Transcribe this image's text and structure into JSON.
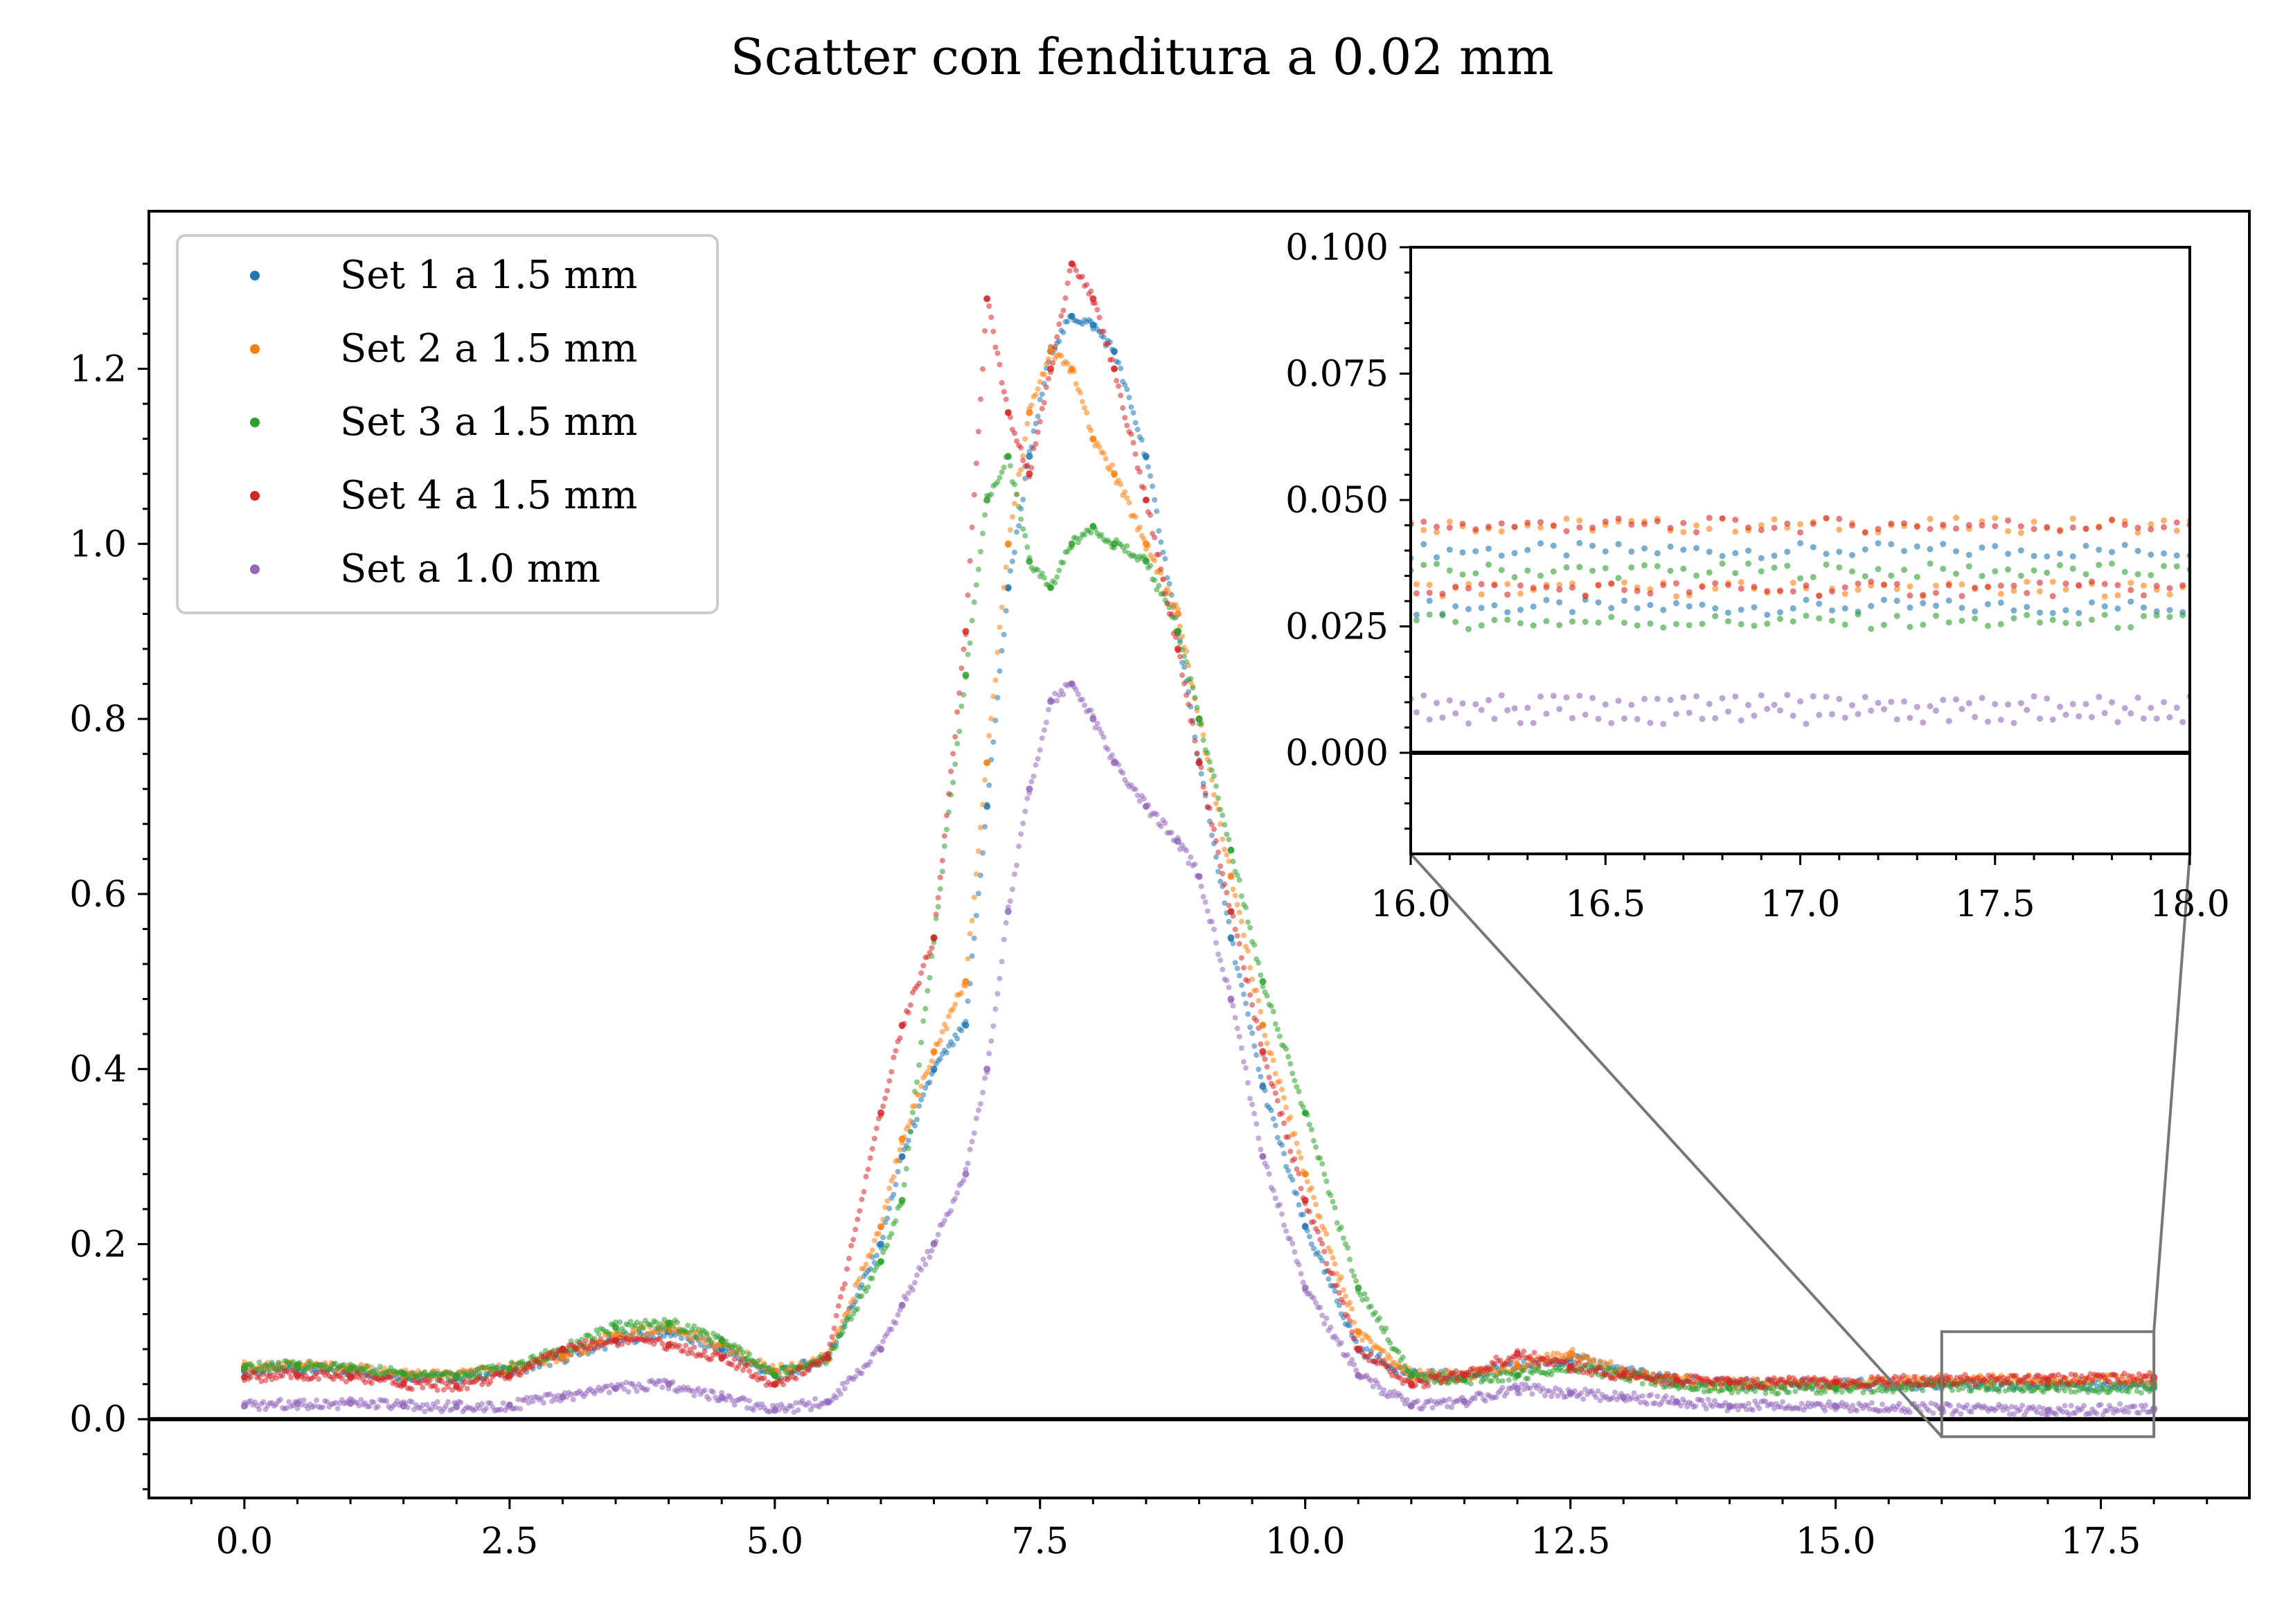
{
  "chart_data": {
    "type": "scatter",
    "title": "Scatter con fenditura a 0.02 mm",
    "xlabel": "",
    "ylabel": "",
    "xlim": [
      -0.9,
      18.9
    ],
    "ylim": [
      -0.09,
      1.38
    ],
    "x_ticks": [
      "0.0",
      "2.5",
      "5.0",
      "7.5",
      "10.0",
      "12.5",
      "15.0",
      "17.5"
    ],
    "y_ticks": [
      "0.0",
      "0.2",
      "0.4",
      "0.6",
      "0.8",
      "1.0",
      "1.2"
    ],
    "grid": false,
    "legend_position": "top-left",
    "series": [
      {
        "name": "Set 1 a 1.5 mm",
        "color": "#1f77b4",
        "points": [
          [
            0,
            0.055
          ],
          [
            0.5,
            0.058
          ],
          [
            1,
            0.055
          ],
          [
            1.5,
            0.05
          ],
          [
            2,
            0.048
          ],
          [
            2.5,
            0.055
          ],
          [
            3,
            0.07
          ],
          [
            3.5,
            0.09
          ],
          [
            4,
            0.1
          ],
          [
            4.5,
            0.08
          ],
          [
            5,
            0.05
          ],
          [
            5.5,
            0.07
          ],
          [
            6,
            0.2
          ],
          [
            6.2,
            0.3
          ],
          [
            6.5,
            0.4
          ],
          [
            6.8,
            0.45
          ],
          [
            7,
            0.7
          ],
          [
            7.2,
            0.95
          ],
          [
            7.4,
            1.1
          ],
          [
            7.6,
            1.22
          ],
          [
            7.8,
            1.26
          ],
          [
            8,
            1.25
          ],
          [
            8.2,
            1.22
          ],
          [
            8.5,
            1.1
          ],
          [
            8.8,
            0.9
          ],
          [
            9,
            0.75
          ],
          [
            9.3,
            0.55
          ],
          [
            9.6,
            0.38
          ],
          [
            10,
            0.22
          ],
          [
            10.5,
            0.08
          ],
          [
            11,
            0.05
          ],
          [
            11.5,
            0.05
          ],
          [
            12,
            0.06
          ],
          [
            12.5,
            0.07
          ],
          [
            13,
            0.055
          ],
          [
            13.5,
            0.045
          ],
          [
            14,
            0.04
          ],
          [
            15,
            0.04
          ],
          [
            16,
            0.04
          ],
          [
            17,
            0.04
          ],
          [
            18,
            0.04
          ]
        ]
      },
      {
        "name": "Set 2 a 1.5 mm",
        "color": "#ff7f0e",
        "points": [
          [
            0,
            0.06
          ],
          [
            0.5,
            0.062
          ],
          [
            1,
            0.058
          ],
          [
            1.5,
            0.05
          ],
          [
            2,
            0.05
          ],
          [
            2.5,
            0.058
          ],
          [
            3,
            0.072
          ],
          [
            3.5,
            0.095
          ],
          [
            4,
            0.105
          ],
          [
            4.5,
            0.085
          ],
          [
            5,
            0.055
          ],
          [
            5.5,
            0.07
          ],
          [
            6,
            0.22
          ],
          [
            6.2,
            0.32
          ],
          [
            6.5,
            0.42
          ],
          [
            6.8,
            0.5
          ],
          [
            7,
            0.75
          ],
          [
            7.2,
            1.0
          ],
          [
            7.4,
            1.15
          ],
          [
            7.6,
            1.22
          ],
          [
            7.8,
            1.2
          ],
          [
            8,
            1.12
          ],
          [
            8.2,
            1.08
          ],
          [
            8.5,
            1.0
          ],
          [
            8.8,
            0.92
          ],
          [
            9,
            0.8
          ],
          [
            9.3,
            0.62
          ],
          [
            9.6,
            0.45
          ],
          [
            10,
            0.28
          ],
          [
            10.5,
            0.1
          ],
          [
            11,
            0.05
          ],
          [
            11.5,
            0.05
          ],
          [
            12,
            0.06
          ],
          [
            12.5,
            0.075
          ],
          [
            13,
            0.055
          ],
          [
            13.5,
            0.045
          ],
          [
            14,
            0.04
          ],
          [
            15,
            0.04
          ],
          [
            16,
            0.045
          ],
          [
            17,
            0.045
          ],
          [
            18,
            0.045
          ]
        ]
      },
      {
        "name": "Set 3 a 1.5 mm",
        "color": "#2ca02c",
        "points": [
          [
            0,
            0.058
          ],
          [
            0.5,
            0.062
          ],
          [
            1,
            0.058
          ],
          [
            1.5,
            0.052
          ],
          [
            2,
            0.05
          ],
          [
            2.5,
            0.058
          ],
          [
            3,
            0.08
          ],
          [
            3.5,
            0.105
          ],
          [
            4,
            0.11
          ],
          [
            4.5,
            0.09
          ],
          [
            5,
            0.05
          ],
          [
            5.5,
            0.07
          ],
          [
            6,
            0.18
          ],
          [
            6.2,
            0.25
          ],
          [
            6.5,
            0.55
          ],
          [
            6.8,
            0.85
          ],
          [
            7,
            1.05
          ],
          [
            7.2,
            1.1
          ],
          [
            7.4,
            0.98
          ],
          [
            7.6,
            0.95
          ],
          [
            7.8,
            1.0
          ],
          [
            8,
            1.02
          ],
          [
            8.2,
            1.0
          ],
          [
            8.5,
            0.98
          ],
          [
            8.8,
            0.9
          ],
          [
            9,
            0.8
          ],
          [
            9.3,
            0.65
          ],
          [
            9.6,
            0.5
          ],
          [
            10,
            0.35
          ],
          [
            10.5,
            0.15
          ],
          [
            11,
            0.05
          ],
          [
            11.5,
            0.045
          ],
          [
            12,
            0.05
          ],
          [
            12.5,
            0.06
          ],
          [
            13,
            0.05
          ],
          [
            13.5,
            0.04
          ],
          [
            14,
            0.035
          ],
          [
            15,
            0.035
          ],
          [
            16,
            0.038
          ],
          [
            17,
            0.036
          ],
          [
            18,
            0.036
          ]
        ]
      },
      {
        "name": "Set 4 a 1.5 mm",
        "color": "#d62728",
        "points": [
          [
            0,
            0.048
          ],
          [
            0.5,
            0.05
          ],
          [
            1,
            0.048
          ],
          [
            1.5,
            0.04
          ],
          [
            2,
            0.038
          ],
          [
            2.5,
            0.05
          ],
          [
            3,
            0.08
          ],
          [
            3.5,
            0.09
          ],
          [
            4,
            0.085
          ],
          [
            4.5,
            0.07
          ],
          [
            5,
            0.04
          ],
          [
            5.5,
            0.07
          ],
          [
            6,
            0.35
          ],
          [
            6.2,
            0.45
          ],
          [
            6.5,
            0.55
          ],
          [
            6.8,
            0.9
          ],
          [
            7,
            1.28
          ],
          [
            7.2,
            1.15
          ],
          [
            7.4,
            1.08
          ],
          [
            7.6,
            1.2
          ],
          [
            7.8,
            1.32
          ],
          [
            8,
            1.28
          ],
          [
            8.2,
            1.2
          ],
          [
            8.5,
            1.05
          ],
          [
            8.8,
            0.88
          ],
          [
            9,
            0.75
          ],
          [
            9.3,
            0.58
          ],
          [
            9.6,
            0.42
          ],
          [
            10,
            0.25
          ],
          [
            10.5,
            0.08
          ],
          [
            11,
            0.04
          ],
          [
            11.5,
            0.05
          ],
          [
            12,
            0.075
          ],
          [
            12.5,
            0.06
          ],
          [
            13,
            0.05
          ],
          [
            13.5,
            0.045
          ],
          [
            14,
            0.042
          ],
          [
            15,
            0.042
          ],
          [
            16,
            0.045
          ],
          [
            17,
            0.045
          ],
          [
            18,
            0.048
          ]
        ]
      },
      {
        "name": "Set a 1.0 mm",
        "color": "#9467bd",
        "points": [
          [
            0,
            0.015
          ],
          [
            0.5,
            0.018
          ],
          [
            1,
            0.018
          ],
          [
            1.5,
            0.015
          ],
          [
            2,
            0.014
          ],
          [
            2.5,
            0.016
          ],
          [
            3,
            0.025
          ],
          [
            3.5,
            0.035
          ],
          [
            4,
            0.04
          ],
          [
            4.5,
            0.025
          ],
          [
            5,
            0.01
          ],
          [
            5.5,
            0.02
          ],
          [
            6,
            0.08
          ],
          [
            6.2,
            0.13
          ],
          [
            6.5,
            0.2
          ],
          [
            6.8,
            0.28
          ],
          [
            7,
            0.4
          ],
          [
            7.2,
            0.58
          ],
          [
            7.4,
            0.72
          ],
          [
            7.6,
            0.82
          ],
          [
            7.8,
            0.84
          ],
          [
            8,
            0.8
          ],
          [
            8.2,
            0.75
          ],
          [
            8.5,
            0.7
          ],
          [
            8.8,
            0.66
          ],
          [
            9,
            0.62
          ],
          [
            9.3,
            0.48
          ],
          [
            9.6,
            0.3
          ],
          [
            10,
            0.15
          ],
          [
            10.5,
            0.05
          ],
          [
            11,
            0.015
          ],
          [
            11.5,
            0.02
          ],
          [
            12,
            0.035
          ],
          [
            12.5,
            0.03
          ],
          [
            13,
            0.025
          ],
          [
            13.5,
            0.02
          ],
          [
            14,
            0.015
          ],
          [
            15,
            0.015
          ],
          [
            16,
            0.012
          ],
          [
            17,
            0.01
          ],
          [
            18,
            0.012
          ]
        ]
      }
    ],
    "inset": {
      "xlim": [
        16.0,
        18.0
      ],
      "ylim": [
        -0.02,
        0.1
      ],
      "x_ticks": [
        "16.0",
        "16.5",
        "17.0",
        "17.5",
        "18.0"
      ],
      "y_ticks": [
        "0.000",
        "0.025",
        "0.050",
        "0.075",
        "0.100"
      ]
    }
  }
}
